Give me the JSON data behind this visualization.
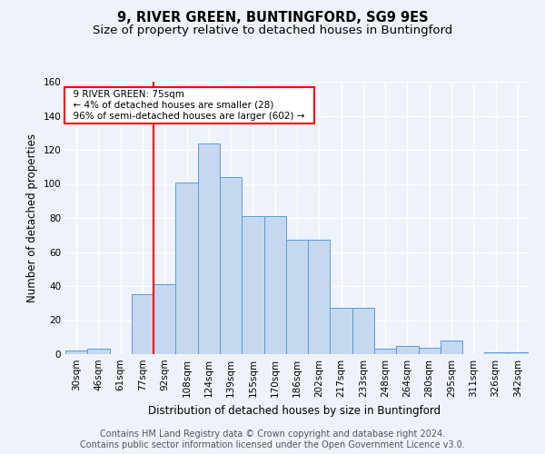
{
  "title1": "9, RIVER GREEN, BUNTINGFORD, SG9 9ES",
  "title2": "Size of property relative to detached houses in Buntingford",
  "xlabel": "Distribution of detached houses by size in Buntingford",
  "ylabel": "Number of detached properties",
  "categories": [
    "30sqm",
    "46sqm",
    "61sqm",
    "77sqm",
    "92sqm",
    "108sqm",
    "124sqm",
    "139sqm",
    "155sqm",
    "170sqm",
    "186sqm",
    "202sqm",
    "217sqm",
    "233sqm",
    "248sqm",
    "264sqm",
    "280sqm",
    "295sqm",
    "311sqm",
    "326sqm",
    "342sqm"
  ],
  "values": [
    2,
    3,
    0,
    35,
    41,
    101,
    124,
    104,
    81,
    81,
    67,
    67,
    27,
    27,
    3,
    5,
    4,
    8,
    0,
    1,
    1
  ],
  "bar_color": "#c5d8f0",
  "bar_edge_color": "#5b9bd5",
  "property_line_x": 3.5,
  "annotation_text1": "9 RIVER GREEN: 75sqm",
  "annotation_text2": "← 4% of detached houses are smaller (28)",
  "annotation_text3": "96% of semi-detached houses are larger (602) →",
  "annotation_box_color": "white",
  "annotation_box_edge": "red",
  "vline_color": "red",
  "ylim": [
    0,
    160
  ],
  "yticks": [
    0,
    20,
    40,
    60,
    80,
    100,
    120,
    140,
    160
  ],
  "footer1": "Contains HM Land Registry data © Crown copyright and database right 2024.",
  "footer2": "Contains public sector information licensed under the Open Government Licence v3.0.",
  "bg_color": "#eef2fa",
  "plot_bg_color": "#eef2fa",
  "grid_color": "#ffffff",
  "title1_fontsize": 10.5,
  "title2_fontsize": 9.5,
  "axis_label_fontsize": 8.5,
  "tick_fontsize": 7.5,
  "footer_fontsize": 7.0
}
